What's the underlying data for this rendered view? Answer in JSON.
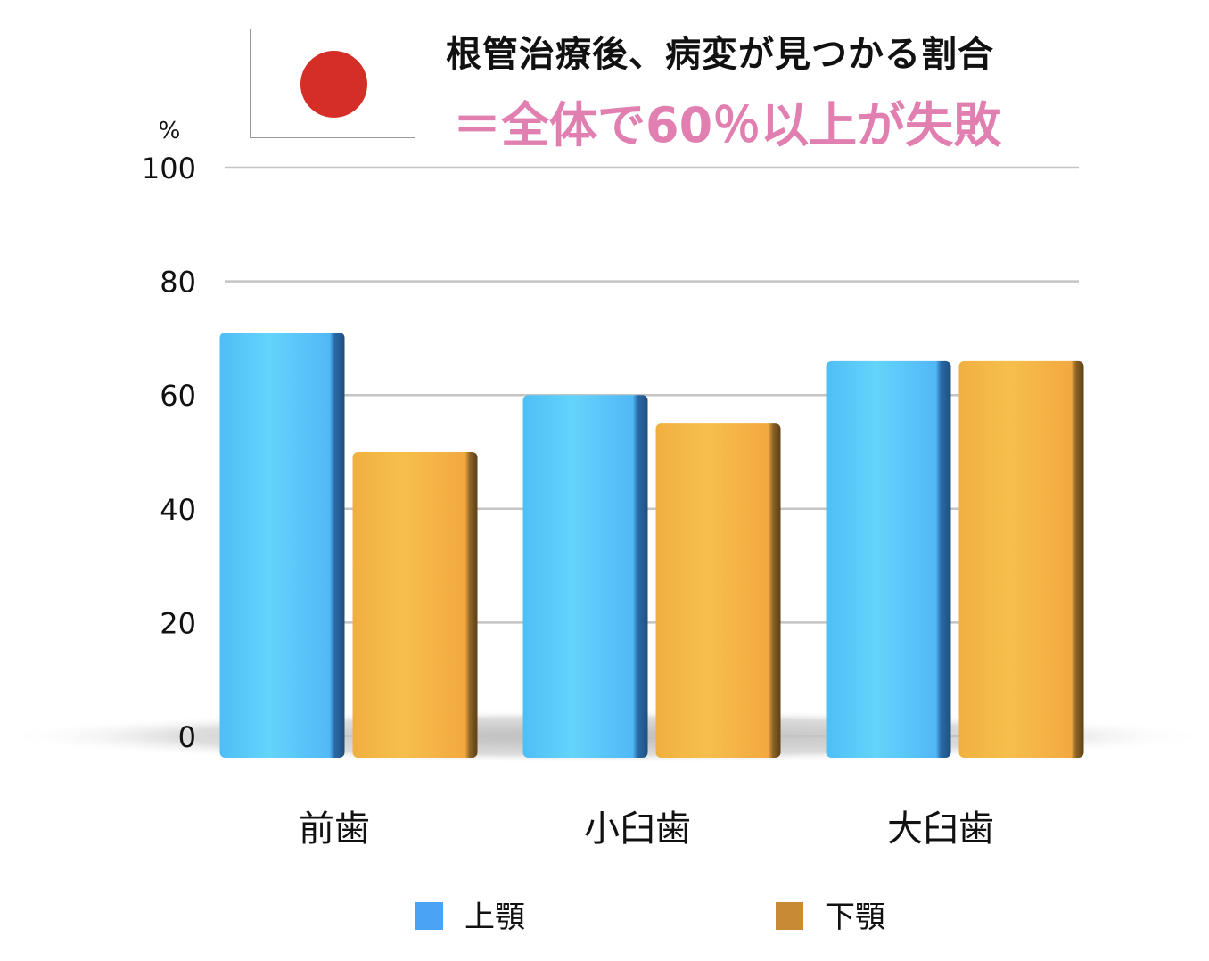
{
  "title": "根管治療後、病変が見つかる割合",
  "subtitle": "＝全体で60％以上が失敗",
  "flag_icon": "japan-flag-icon",
  "chart_data": {
    "type": "bar",
    "title": "根管治療後、病変が見つかる割合",
    "subtitle": "＝全体で60％以上が失敗",
    "ylabel": "%",
    "ylim": [
      0,
      100
    ],
    "yticks": [
      0,
      20,
      40,
      60,
      80,
      100
    ],
    "grid": true,
    "legend_position": "bottom",
    "categories": [
      "前歯",
      "小臼歯",
      "大臼歯"
    ],
    "series": [
      {
        "name": "上顎",
        "color": "#4aa3f5",
        "values": [
          71,
          60,
          66
        ]
      },
      {
        "name": "下顎",
        "color": "#c98a35",
        "values": [
          50,
          55,
          66
        ]
      }
    ]
  }
}
